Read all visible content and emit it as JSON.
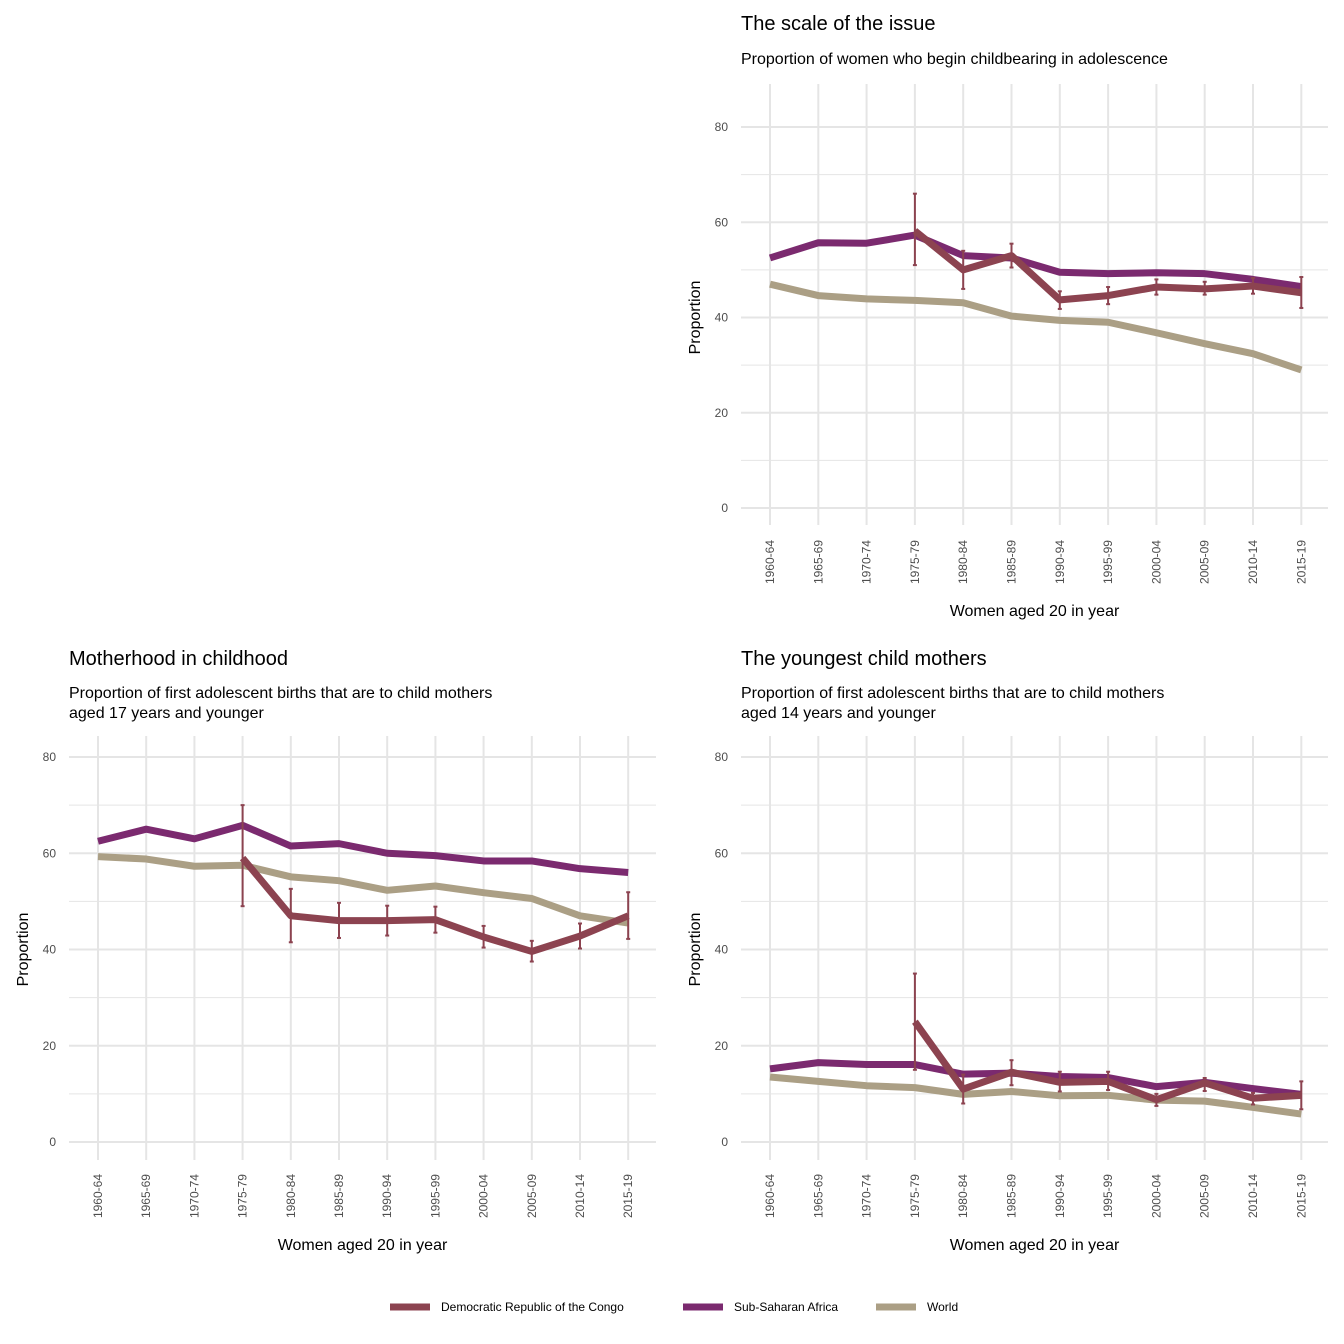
{
  "colors": {
    "drc": "#8c4350",
    "ssa": "#7b2a6f",
    "world": "#ab9f85",
    "grid": "#e5e5e5"
  },
  "legend": [
    {
      "key": "drc",
      "label": "Democratic Republic of the Congo"
    },
    {
      "key": "ssa",
      "label": "Sub-Saharan Africa"
    },
    {
      "key": "world",
      "label": "World"
    }
  ],
  "chart_data": [
    {
      "type": "line",
      "title": "The scale of the issue",
      "subtitle": [
        "Proportion of women who begin childbearing in adolescence"
      ],
      "xlabel": "Women aged 20 in year",
      "ylabel": "Proportion",
      "ylim": [
        0,
        80
      ],
      "yticks": [
        0,
        20,
        40,
        60,
        80
      ],
      "categories": [
        "1960-64",
        "1965-69",
        "1970-74",
        "1975-79",
        "1980-84",
        "1985-89",
        "1990-94",
        "1995-99",
        "2000-04",
        "2005-09",
        "2010-14",
        "2015-19"
      ],
      "series": [
        {
          "key": "ssa",
          "name": "Sub-Saharan Africa",
          "values": [
            52.5,
            55.7,
            55.6,
            57.3,
            53.0,
            52.5,
            49.5,
            49.2,
            49.4,
            49.2,
            48.0,
            46.5
          ]
        },
        {
          "key": "world",
          "name": "World",
          "values": [
            47.0,
            44.6,
            43.9,
            43.6,
            43.1,
            40.3,
            39.4,
            39.0,
            36.8,
            34.5,
            32.4,
            29.0
          ]
        },
        {
          "key": "drc",
          "name": "Democratic Republic of the Congo",
          "values": [
            null,
            null,
            null,
            58.2,
            50.0,
            53.0,
            43.7,
            44.6,
            46.4,
            46.0,
            46.6,
            45.2
          ],
          "err_low": [
            null,
            null,
            null,
            51.0,
            46.0,
            50.5,
            41.8,
            42.8,
            44.8,
            44.8,
            45.0,
            42.0
          ],
          "err_high": [
            null,
            null,
            null,
            66.0,
            54.0,
            55.5,
            45.5,
            46.4,
            48.0,
            47.5,
            48.3,
            48.5
          ]
        }
      ]
    },
    {
      "type": "line",
      "title": "Motherhood in childhood",
      "subtitle": [
        "Proportion of first adolescent births that are to child mothers",
        "aged 17 years and younger"
      ],
      "xlabel": "Women aged 20 in year",
      "ylabel": "Proportion",
      "ylim": [
        0,
        80
      ],
      "yticks": [
        0,
        20,
        40,
        60,
        80
      ],
      "categories": [
        "1960-64",
        "1965-69",
        "1970-74",
        "1975-79",
        "1980-84",
        "1985-89",
        "1990-94",
        "1995-99",
        "2000-04",
        "2005-09",
        "2010-14",
        "2015-19"
      ],
      "series": [
        {
          "key": "ssa",
          "name": "Sub-Saharan Africa",
          "values": [
            62.5,
            65.0,
            63.0,
            65.8,
            61.5,
            62.0,
            60.0,
            59.5,
            58.4,
            58.4,
            56.8,
            56.0
          ]
        },
        {
          "key": "world",
          "name": "World",
          "values": [
            59.3,
            58.8,
            57.3,
            57.5,
            55.1,
            54.3,
            52.3,
            53.2,
            51.8,
            50.6,
            47.0,
            45.5
          ]
        },
        {
          "key": "drc",
          "name": "Democratic Republic of the Congo",
          "values": [
            null,
            null,
            null,
            59.0,
            47.0,
            46.0,
            46.0,
            46.2,
            42.6,
            39.6,
            42.8,
            47.0
          ],
          "err_low": [
            null,
            null,
            null,
            49.0,
            41.5,
            42.4,
            42.9,
            43.5,
            40.4,
            37.5,
            40.2,
            42.2
          ],
          "err_high": [
            null,
            null,
            null,
            70.0,
            52.6,
            49.7,
            49.1,
            48.9,
            44.9,
            41.8,
            45.4,
            51.9
          ]
        }
      ]
    },
    {
      "type": "line",
      "title": "The youngest child mothers",
      "subtitle": [
        "Proportion of first adolescent births that are to child mothers",
        "aged 14 years and younger"
      ],
      "xlabel": "Women aged 20 in year",
      "ylabel": "Proportion",
      "ylim": [
        0,
        80
      ],
      "yticks": [
        0,
        20,
        40,
        60,
        80
      ],
      "categories": [
        "1960-64",
        "1965-69",
        "1970-74",
        "1975-79",
        "1980-84",
        "1985-89",
        "1990-94",
        "1995-99",
        "2000-04",
        "2005-09",
        "2010-14",
        "2015-19"
      ],
      "series": [
        {
          "key": "ssa",
          "name": "Sub-Saharan Africa",
          "values": [
            15.2,
            16.5,
            16.1,
            16.1,
            14.1,
            14.3,
            13.6,
            13.4,
            11.5,
            12.4,
            11.1,
            9.9
          ]
        },
        {
          "key": "world",
          "name": "World",
          "values": [
            13.5,
            12.6,
            11.7,
            11.3,
            9.9,
            10.5,
            9.6,
            9.7,
            8.7,
            8.5,
            7.2,
            5.8
          ]
        },
        {
          "key": "drc",
          "name": "Democratic Republic of the Congo",
          "values": [
            null,
            null,
            null,
            25.0,
            11.0,
            14.5,
            12.4,
            12.6,
            8.8,
            12.3,
            9.1,
            9.7
          ],
          "err_low": [
            null,
            null,
            null,
            15.0,
            8.0,
            11.8,
            10.5,
            10.8,
            7.5,
            10.6,
            7.8,
            6.8
          ],
          "err_high": [
            null,
            null,
            null,
            35.0,
            14.0,
            17.0,
            14.6,
            14.6,
            10.0,
            13.3,
            10.2,
            12.6
          ]
        }
      ]
    }
  ]
}
